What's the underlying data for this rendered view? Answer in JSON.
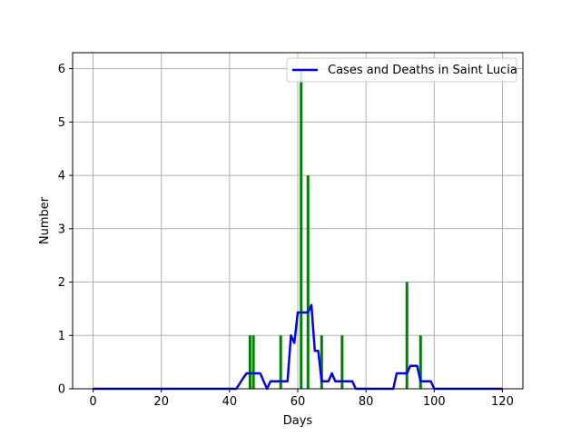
{
  "chart_data": {
    "type": "bar",
    "title": "",
    "xlabel": "Days",
    "ylabel": "Number",
    "xlim": [
      -6,
      126
    ],
    "ylim": [
      0,
      6.3
    ],
    "xticks": [
      0,
      20,
      40,
      60,
      80,
      100,
      120
    ],
    "yticks": [
      0,
      1,
      2,
      3,
      4,
      5,
      6
    ],
    "grid": true,
    "legend_position": "top-right",
    "bar_color": "#008000",
    "bars": {
      "x": [
        46,
        47,
        55,
        61,
        63,
        67,
        73,
        92,
        96
      ],
      "values": [
        1,
        1,
        1,
        6,
        4,
        1,
        1,
        2,
        1
      ]
    },
    "series": [
      {
        "name": "Cases and Deaths in Saint Lucia",
        "color": "#0000ff",
        "type": "line",
        "x": [
          0,
          42,
          44,
          45,
          46,
          47,
          48,
          49,
          50,
          51,
          52,
          53,
          54,
          55,
          56,
          57,
          58,
          59,
          60,
          61,
          62,
          63,
          64,
          65,
          66,
          67,
          68,
          69,
          70,
          71,
          72,
          73,
          74,
          75,
          76,
          77,
          78,
          79,
          80,
          87,
          88,
          89,
          90,
          91,
          92,
          93,
          94,
          95,
          96,
          97,
          98,
          99,
          100,
          120
        ],
        "y": [
          0,
          0,
          0.2,
          0.29,
          0.29,
          0.29,
          0.29,
          0.29,
          0.14,
          0,
          0.14,
          0.14,
          0.14,
          0.14,
          0.14,
          0.14,
          1.0,
          0.86,
          1.43,
          1.43,
          1.43,
          1.43,
          1.57,
          0.71,
          0.71,
          0.14,
          0.14,
          0.14,
          0.29,
          0.14,
          0.14,
          0.14,
          0.14,
          0.14,
          0.14,
          0,
          0,
          0,
          0,
          0,
          0,
          0.29,
          0.29,
          0.29,
          0.29,
          0.43,
          0.43,
          0.43,
          0.14,
          0.14,
          0.14,
          0.14,
          0,
          0
        ]
      }
    ]
  }
}
